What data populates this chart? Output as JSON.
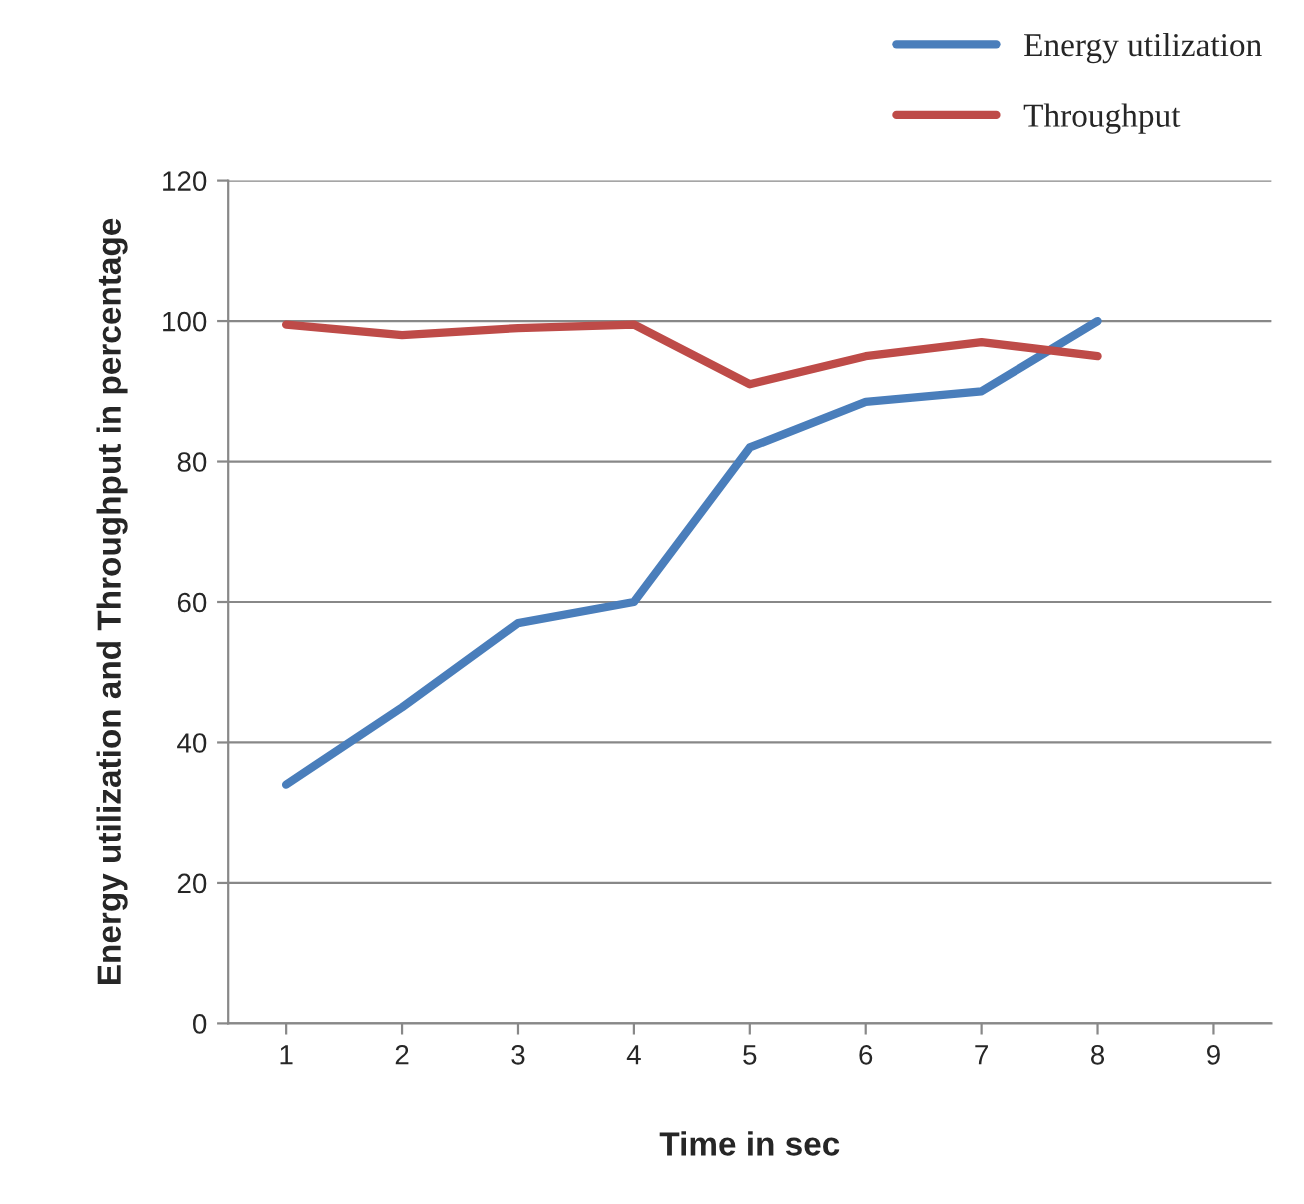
{
  "chart_data": {
    "type": "line",
    "xlabel": "Time in sec",
    "ylabel": "Energy utilization and Throughput in percentage",
    "categories": [
      "1",
      "2",
      "3",
      "4",
      "5",
      "6",
      "7",
      "8",
      "9"
    ],
    "series": [
      {
        "name": "Energy utilization",
        "color": "#4a7ebb",
        "values": [
          34,
          45,
          57,
          60,
          82,
          88.5,
          90,
          100,
          null
        ]
      },
      {
        "name": "Throughput",
        "color": "#be4b48",
        "values": [
          99.5,
          98,
          99,
          99.5,
          91,
          95,
          97,
          95,
          null
        ]
      }
    ],
    "ylim": [
      0,
      120
    ],
    "yticks": [
      0,
      20,
      40,
      60,
      80,
      100,
      120
    ],
    "grid": "y",
    "legend": "top right",
    "marker": "none",
    "line_style": "solid"
  }
}
